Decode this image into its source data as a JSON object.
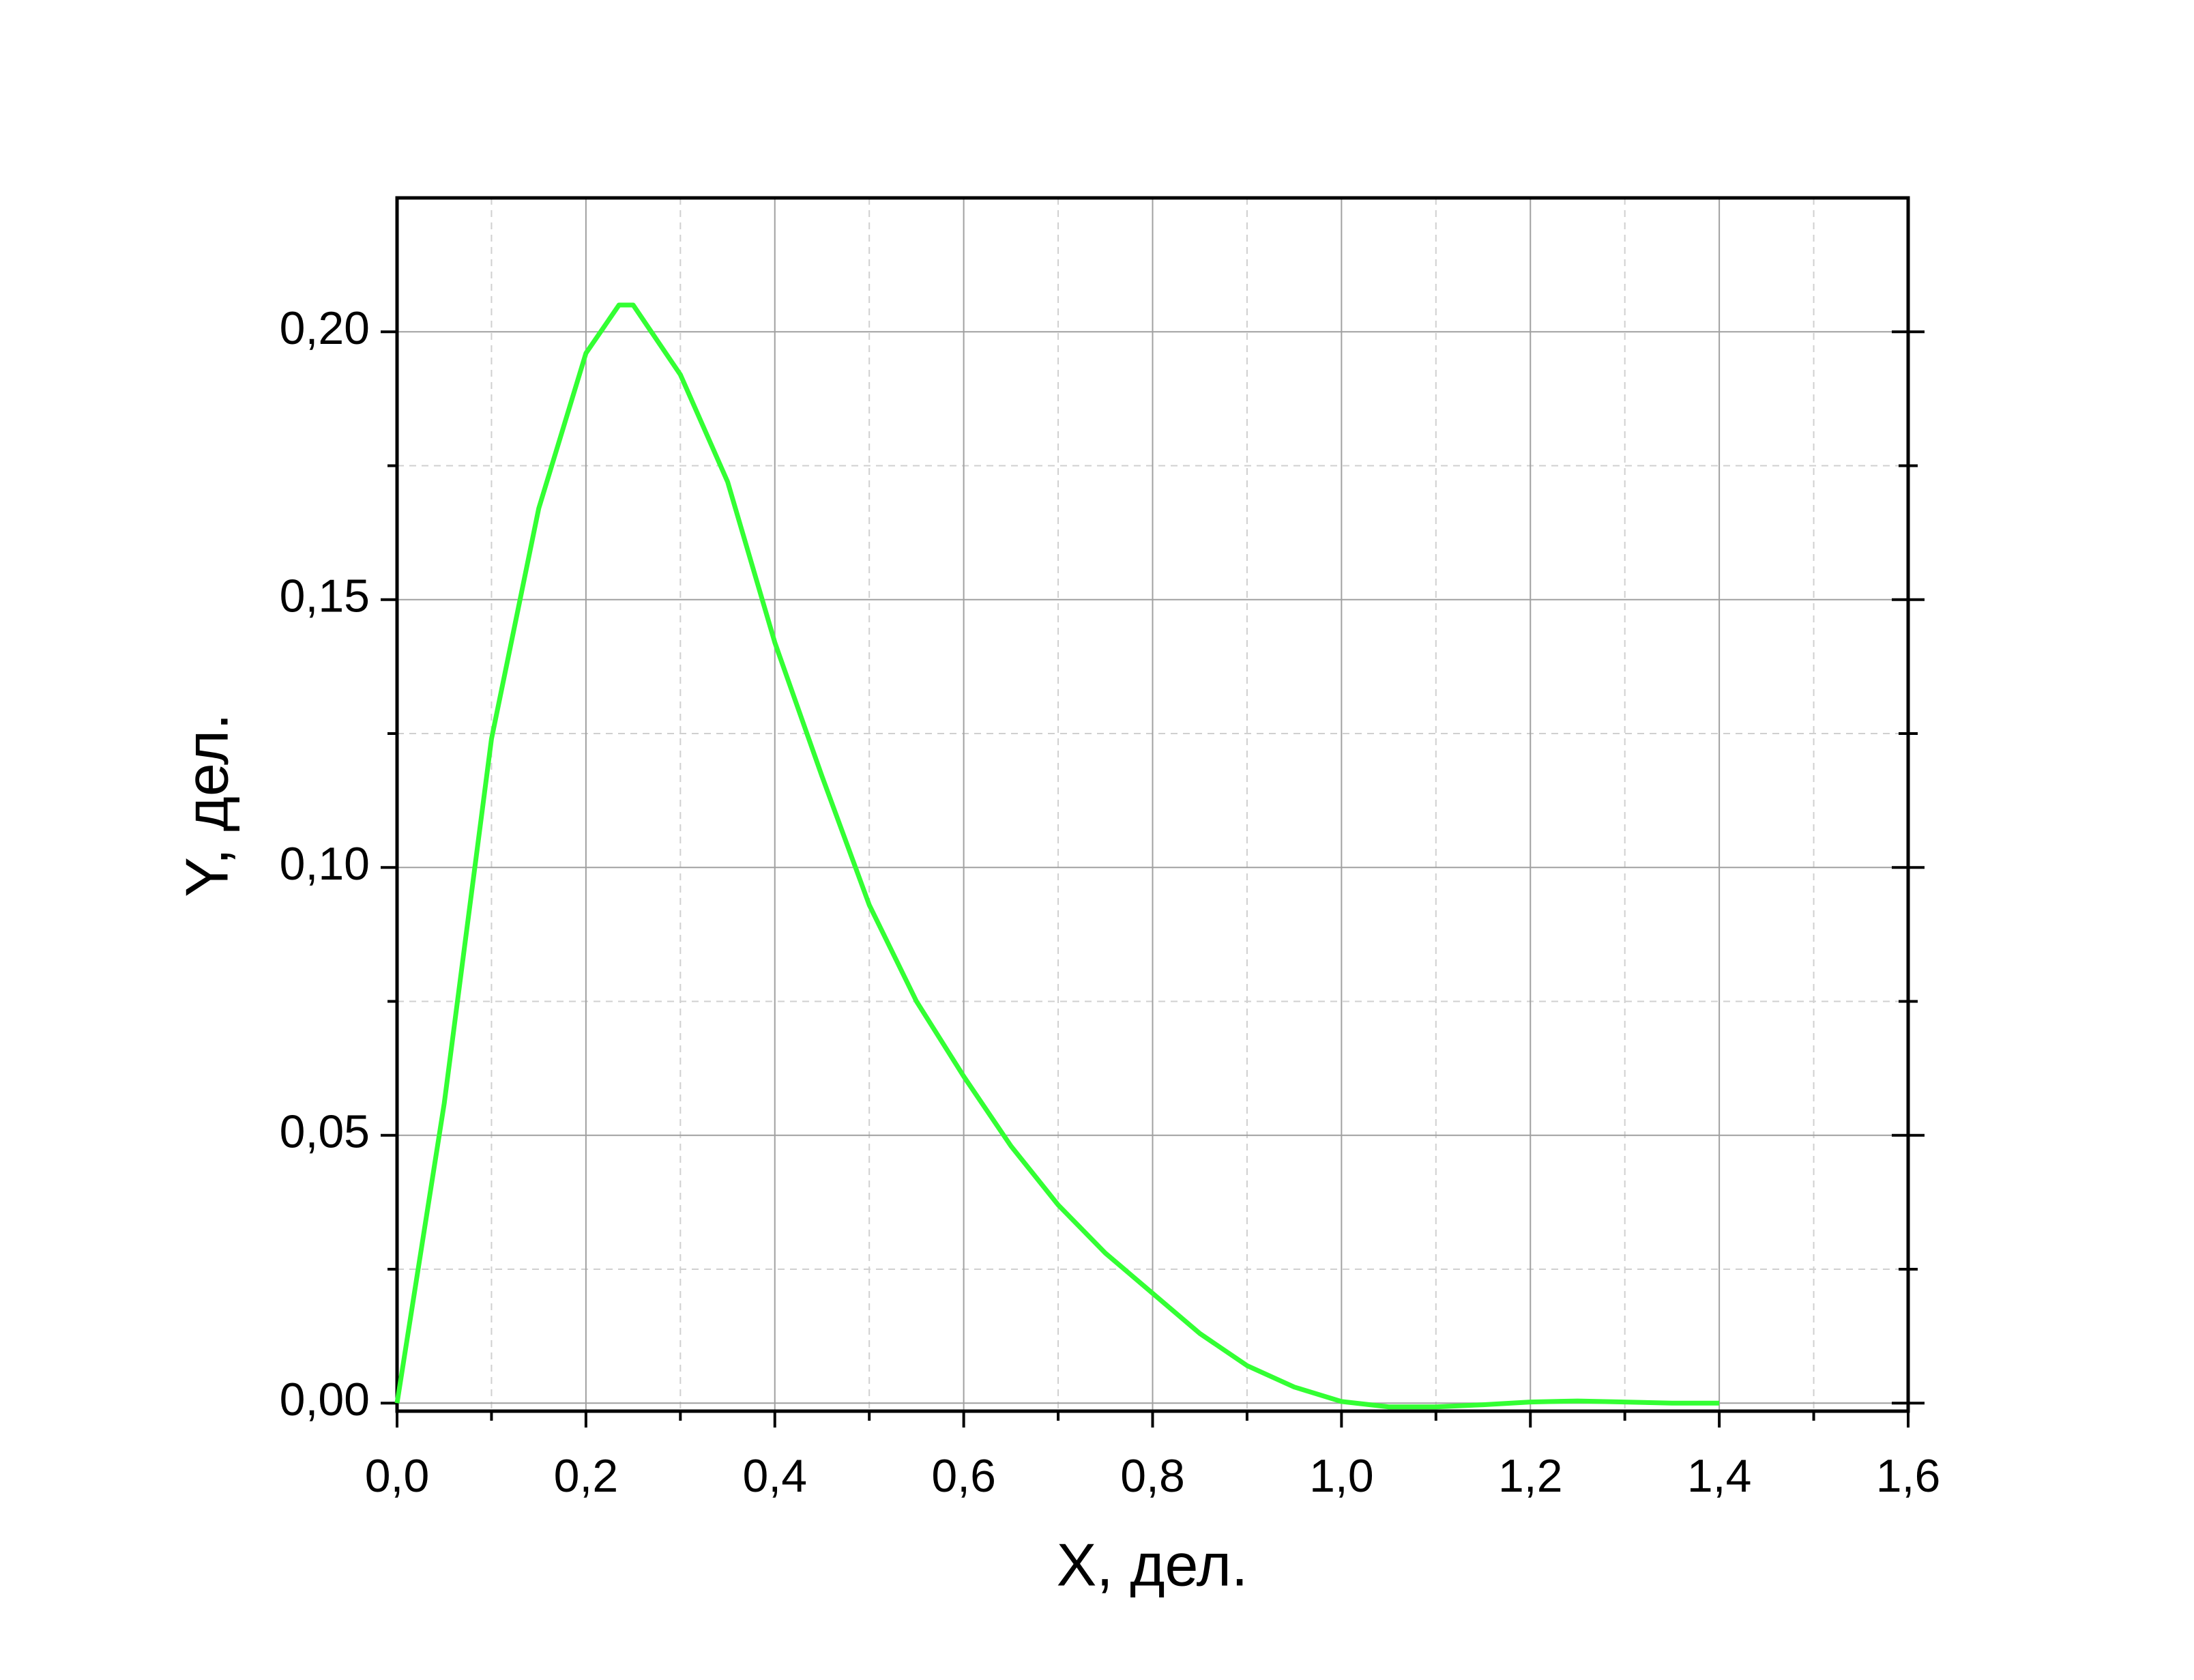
{
  "chart_data": {
    "type": "line",
    "x_label": "X, дел.",
    "y_label": "Y, дел.",
    "x": [
      0,
      0.05,
      0.1,
      0.15,
      0.2,
      0.235,
      0.25,
      0.3,
      0.35,
      0.4,
      0.45,
      0.5,
      0.55,
      0.6,
      0.65,
      0.7,
      0.75,
      0.8,
      0.85,
      0.9,
      0.95,
      1.0,
      1.05,
      1.1,
      1.15,
      1.2,
      1.25,
      1.3,
      1.35,
      1.4
    ],
    "series": [
      {
        "color": "#33ff33",
        "values": [
          0,
          0.056,
          0.124,
          0.167,
          0.196,
          0.205,
          0.205,
          0.192,
          0.172,
          0.142,
          0.117,
          0.093,
          0.075,
          0.061,
          0.048,
          0.037,
          0.028,
          0.0205,
          0.013,
          0.007,
          0.003,
          0.0003,
          -0.0007,
          -0.0007,
          -0.0003,
          0.0002,
          0.0004,
          0.0002,
          0,
          0
        ]
      }
    ],
    "xlim": [
      0,
      1.6
    ],
    "ylim": [
      -0.0015,
      0.225
    ],
    "xticks": [
      {
        "value": 0,
        "label": "0,0"
      },
      {
        "value": 0.2,
        "label": "0,2"
      },
      {
        "value": 0.4,
        "label": "0,4"
      },
      {
        "value": 0.6,
        "label": "0,6"
      },
      {
        "value": 0.8,
        "label": "0,8"
      },
      {
        "value": 1.0,
        "label": "1,0"
      },
      {
        "value": 1.2,
        "label": "1,2"
      },
      {
        "value": 1.4,
        "label": "1,4"
      },
      {
        "value": 1.6,
        "label": "1,6"
      }
    ],
    "yticks": [
      {
        "value": 0,
        "label": "0,00"
      },
      {
        "value": 0.05,
        "label": "0,05"
      },
      {
        "value": 0.1,
        "label": "0,10"
      },
      {
        "value": 0.15,
        "label": "0,15"
      },
      {
        "value": 0.2,
        "label": "0,20"
      }
    ],
    "xminorticks": [
      0.1,
      0.3,
      0.5,
      0.7,
      0.9,
      1.1,
      1.3,
      1.5
    ],
    "yminorticks": [
      0.025,
      0.075,
      0.125,
      0.175
    ],
    "grid": true
  }
}
